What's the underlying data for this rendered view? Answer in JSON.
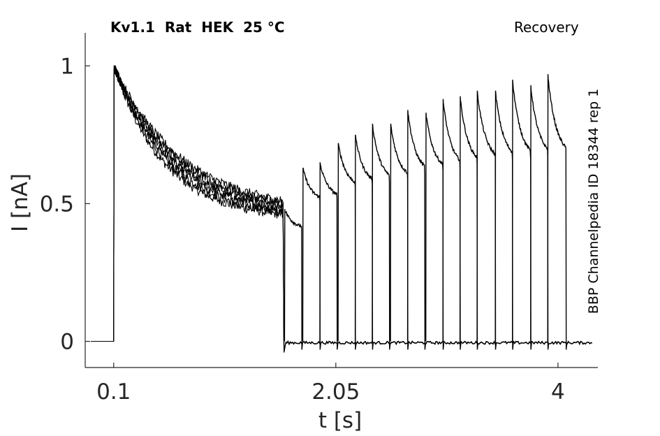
{
  "chart_data": {
    "type": "line",
    "title": "Kv1.1  Rat  HEK  25 °C",
    "protocol": "Recovery",
    "side_label": "BBP Channelpedia ID 18344 rep 1",
    "xlabel": "t [s]",
    "ylabel": "I [nA]",
    "x_ticks": [
      "0.1",
      "2.05",
      "4"
    ],
    "x_tick_values": [
      0.1,
      2.05,
      4.0
    ],
    "y_ticks": [
      "0",
      "0.5",
      "1"
    ],
    "y_tick_values": [
      0,
      0.5,
      1
    ],
    "xlim": [
      -0.15,
      4.35
    ],
    "ylim": [
      -0.095,
      1.12
    ],
    "grid": false,
    "legend": "none",
    "color": "#000000",
    "description_series": {
      "baseline_start": -0.1,
      "prepulse_start": 0.1,
      "prepulse_end": 1.59,
      "prepulse_peak": 1.0,
      "prepulse_end_current": 0.44,
      "tail_end": 4.3
    },
    "test_pulses": [
      {
        "t_start": 1.6,
        "t_end": 1.75,
        "peak": 0.48,
        "end": 0.41
      },
      {
        "t_start": 1.76,
        "t_end": 1.91,
        "peak": 0.63,
        "end": 0.51
      },
      {
        "t_start": 1.91,
        "t_end": 2.06,
        "peak": 0.65,
        "end": 0.52
      },
      {
        "t_start": 2.07,
        "t_end": 2.22,
        "peak": 0.72,
        "end": 0.56
      },
      {
        "t_start": 2.22,
        "t_end": 2.37,
        "peak": 0.75,
        "end": 0.57
      },
      {
        "t_start": 2.37,
        "t_end": 2.52,
        "peak": 0.79,
        "end": 0.58
      },
      {
        "t_start": 2.53,
        "t_end": 2.68,
        "peak": 0.79,
        "end": 0.59
      },
      {
        "t_start": 2.68,
        "t_end": 2.83,
        "peak": 0.84,
        "end": 0.61
      },
      {
        "t_start": 2.84,
        "t_end": 2.99,
        "peak": 0.83,
        "end": 0.62
      },
      {
        "t_start": 2.99,
        "t_end": 3.14,
        "peak": 0.88,
        "end": 0.63
      },
      {
        "t_start": 3.14,
        "t_end": 3.29,
        "peak": 0.89,
        "end": 0.64
      },
      {
        "t_start": 3.29,
        "t_end": 3.45,
        "peak": 0.91,
        "end": 0.65
      },
      {
        "t_start": 3.45,
        "t_end": 3.6,
        "peak": 0.91,
        "end": 0.66
      },
      {
        "t_start": 3.6,
        "t_end": 3.76,
        "peak": 0.95,
        "end": 0.66
      },
      {
        "t_start": 3.76,
        "t_end": 3.91,
        "peak": 0.93,
        "end": 0.67
      },
      {
        "t_start": 3.91,
        "t_end": 4.07,
        "peak": 0.97,
        "end": 0.67
      }
    ]
  }
}
